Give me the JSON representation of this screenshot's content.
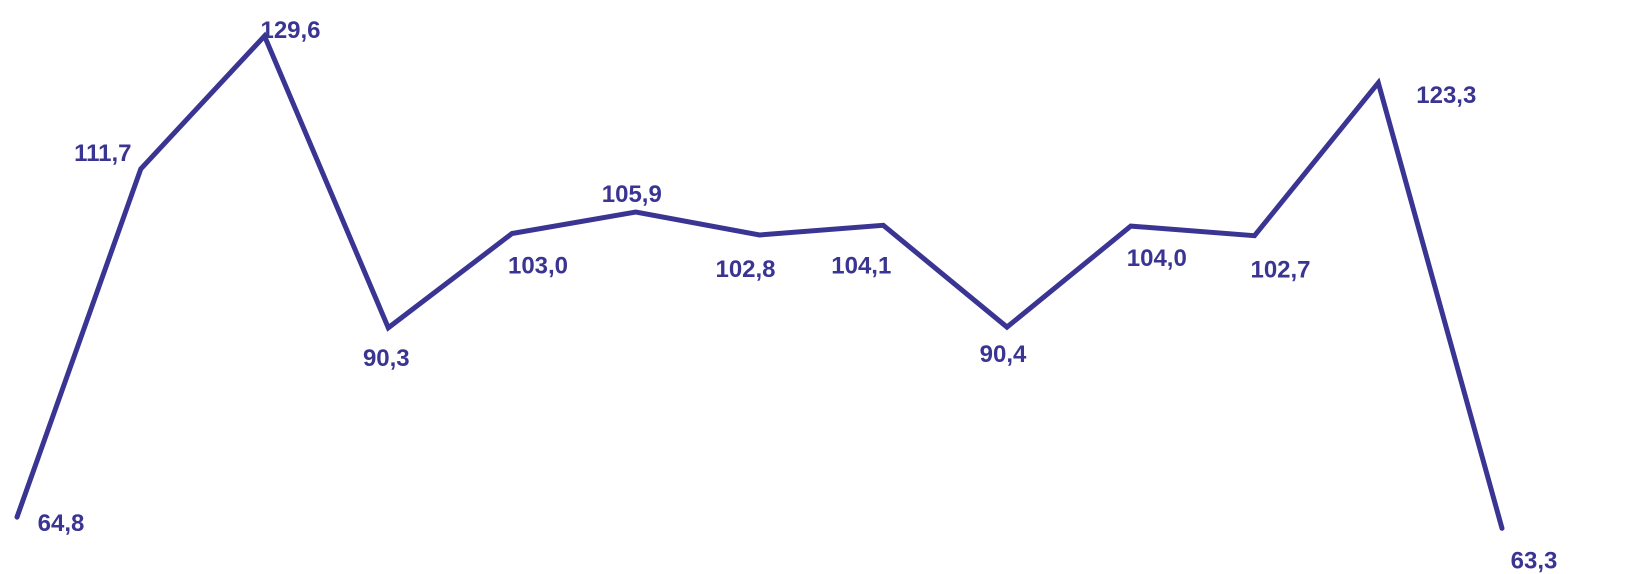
{
  "chart_data": {
    "type": "line",
    "title": "",
    "xlabel": "",
    "ylabel": "",
    "x": [
      1,
      2,
      3,
      4,
      5,
      6,
      7,
      8,
      9,
      10,
      11,
      12,
      13
    ],
    "series": [
      {
        "values": [
          64.8,
          111.7,
          129.6,
          90.3,
          103.0,
          105.9,
          102.8,
          104.1,
          90.4,
          104.0,
          102.7,
          123.3,
          63.3
        ],
        "labels": [
          "64,8",
          "111,7",
          "129,6",
          "90,3",
          "103,0",
          "105,9",
          "102,8",
          "104,1",
          "90,4",
          "104,0",
          "102,7",
          "123,3",
          "63,3"
        ],
        "color": "#3a3492"
      }
    ],
    "grid": false,
    "legend": "none",
    "axes_visible": false
  }
}
